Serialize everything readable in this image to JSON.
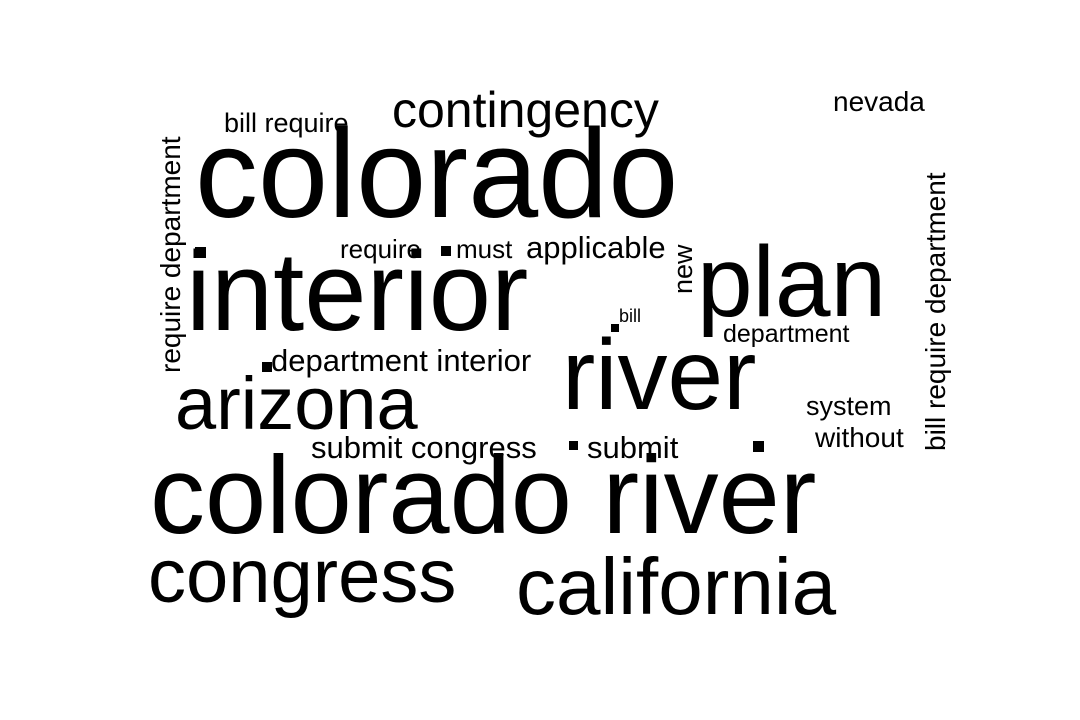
{
  "words": {
    "colorado_river": "colorado river",
    "colorado": "colorado",
    "interior": "interior",
    "plan": "plan",
    "river": "river",
    "congress": "congress",
    "california": "california",
    "arizona": "arizona",
    "contingency": "contingency",
    "nevada": "nevada",
    "bill_require": "bill require",
    "require": "require",
    "must": "must",
    "applicable": "applicable",
    "bill": "bill",
    "department": "department",
    "department_interior": "department interior",
    "submit_congress": "submit congress",
    "submit": "submit",
    "system": "system",
    "without": "without",
    "new": "new",
    "require_department": "require department",
    "bill_require_department": "bill require department"
  },
  "colors": {
    "text": "#000000",
    "background": "#ffffff"
  }
}
